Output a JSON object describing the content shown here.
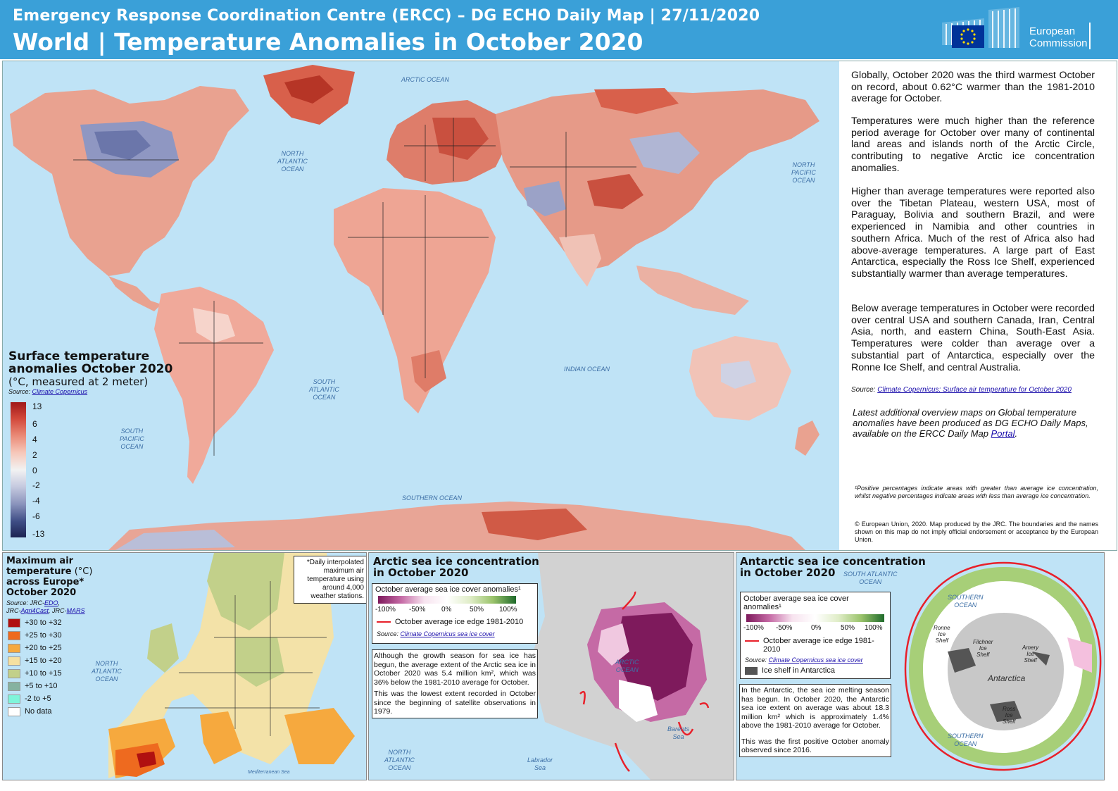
{
  "header": {
    "line1": "Emergency Response Coordination Centre (ERCC) – DG ECHO Daily Map | 27/11/2020",
    "line2": "World | Temperature Anomalies in October 2020",
    "logo_text_1": "European",
    "logo_text_2": "Commission"
  },
  "oceans": {
    "arctic": "ARCTIC OCEAN",
    "north_atlantic_1": "NORTH",
    "north_atlantic_2": "ATLANTIC",
    "north_atlantic_3": "OCEAN",
    "north_pacific_1": "NORTH",
    "north_pacific_2": "PACIFIC",
    "north_pacific_3": "OCEAN",
    "south_atlantic_1": "SOUTH",
    "south_atlantic_2": "ATLANTIC",
    "south_atlantic_3": "OCEAN",
    "south_pacific_1": "SOUTH",
    "south_pacific_2": "PACIFIC",
    "south_pacific_3": "OCEAN",
    "indian": "INDIAN OCEAN",
    "southern": "SOUTHERN OCEAN"
  },
  "legend": {
    "title1": "Surface temperature",
    "title2": "anomalies October 2020",
    "subtitle": "(°C, measured at 2 meter)",
    "source_label": "Source:",
    "source_link": "Climate Copernicus",
    "ticks": [
      "13",
      "6",
      "4",
      "2",
      "0",
      "-2",
      "-4",
      "-6",
      "-13"
    ],
    "colors": [
      "#a01919",
      "#d2483a",
      "#ea8b78",
      "#f6c6b8",
      "#f2f2f2",
      "#c7cbe0",
      "#8c95bd",
      "#3f4e86",
      "#1c2352"
    ]
  },
  "side": {
    "p1": "Globally, October 2020 was the third warmest October on record, about 0.62°C warmer than the 1981-2010 average for October.",
    "p2": "Temperatures were much higher than the reference period average for October over many of continental land areas and islands north of the Arctic Circle, contributing to negative Arctic ice concentration anomalies.",
    "p3": "Higher than average temperatures were reported also over the Tibetan Plateau, western USA, most of Paraguay, Bolivia and southern Brazil, and were experienced in Namibia and other countries in southern Africa. Much of the rest of Africa also had above-average temperatures. A large part of East Antarctica, especially the Ross Ice Shelf, experienced substantially warmer than average temperatures.",
    "p4": "Below average temperatures in October were recorded over central USA and southern Canada, Iran, Central Asia, north, and eastern China, South-East Asia. Temperatures were colder than average over a substantial part of Antarctica, especially over the Ronne Ice Shelf, and central Australia.",
    "source_label": "Source:",
    "source_link": "Climate Copernicus: Surface air temperature for October 2020",
    "p5_prefix": "Latest additional overview maps on Global temperature anomalies have been produced as DG ECHO Daily Maps, available on the ERCC Daily Map ",
    "p5_link": "Portal",
    "p5_suffix": ".",
    "footnote": "¹Positive percentages indicate areas with greater than average ice concentration, whilst negative percentages indicate areas with less than average ice concentration.",
    "copyright": "© European Union, 2020. Map produced by the JRC. The boundaries and the names shown on this map do not imply official endorsement or acceptance by the European Union."
  },
  "europe": {
    "title1": "Maximum air",
    "title2": "temperature",
    "title2b": " (°C)",
    "title3": "across Europe*",
    "title4": "October 2020",
    "source_label": "Source: JRC-",
    "src_edo": "EDO",
    "src_mid": ",",
    "src_jrc": "JRC-",
    "src_agri": "Agri4Cast",
    "src_mid2": ", JRC-",
    "src_mars": "MARS",
    "note": "*Daily interpolated maximum air temperature using around 4,000 weather stations.",
    "legend": [
      {
        "label": "+30 to +32",
        "color": "#b01010"
      },
      {
        "label": "+25 to +30",
        "color": "#ee6a1f"
      },
      {
        "label": "+20 to +25",
        "color": "#f6a93e"
      },
      {
        "label": "+15 to +20",
        "color": "#f6e0a0"
      },
      {
        "label": "+10 to +15",
        "color": "#c2d08a"
      },
      {
        "label": "+5 to +10",
        "color": "#86b2a0"
      },
      {
        "label": "-2 to +5",
        "color": "#7ff5da"
      },
      {
        "label": "No data",
        "color": "#ffffff"
      }
    ],
    "ocean1": "NORTH",
    "ocean2": "ATLANTIC",
    "ocean3": "OCEAN",
    "sea": "Mediterranean Sea"
  },
  "arctic": {
    "title1": "Arctic sea ice concentration",
    "title2": "in October 2020",
    "legend_title": "October average sea ice cover anomalies¹",
    "ticks": [
      "-100%",
      "-50%",
      "0%",
      "50%",
      "100%"
    ],
    "edge": "October average ice edge 1981-2010",
    "source_label": "Source:",
    "source_link": "Climate Copernicus sea ice cover",
    "text1": "Although the growth season for sea ice has begun, the average extent of the Arctic sea ice in October 2020 was 5.4 million km², which was 36% below the 1981-2010 average for October.",
    "text2": "This was the lowest extent recorded in October since the beginning of satellite observations in 1979.",
    "ocean_arctic1": "ARCTIC",
    "ocean_arctic2": "OCEAN",
    "barents1": "Barents",
    "barents2": "Sea",
    "labrador1": "Labrador",
    "labrador2": "Sea",
    "na1": "NORTH",
    "na2": "ATLANTIC",
    "na3": "OCEAN"
  },
  "antarctic": {
    "title1": "Antarctic sea ice concentration",
    "title2": "in October 2020",
    "legend_title": "October average sea ice cover anomalies¹",
    "ticks": [
      "-100%",
      "-50%",
      "0%",
      "50%",
      "100%"
    ],
    "edge": "October average ice edge 1981-2010",
    "source_label": "Source:",
    "source_link": "Climate Copernicus sea ice cover",
    "shelf": "Ice shelf in Antarctica",
    "text1": "In the Antarctic, the sea ice melting season has begun. In October 2020, the Antarctic sea ice extent on average was about 18.3 million km² which is approximately 1.4% above the 1981-2010 average for October.",
    "text2": "This was the first positive October anomaly observed since 2016.",
    "sa1": "SOUTH ATLANTIC",
    "sa2": "OCEAN",
    "so1": "SOUTHERN",
    "so2": "OCEAN",
    "so3": "SOUTHERN",
    "so4": "OCEAN",
    "antarctica": "Antarctica",
    "ronne1": "Ronne",
    "ronne2": "Ice",
    "ronne3": "Shelf",
    "filchner1": "Filchner",
    "filchner2": "Ice",
    "filchner3": "Shelf",
    "amery1": "Amery",
    "amery2": "Ice",
    "amery3": "Shelf",
    "ross1": "Ross",
    "ross2": "Ice",
    "ross3": "Shelf"
  }
}
